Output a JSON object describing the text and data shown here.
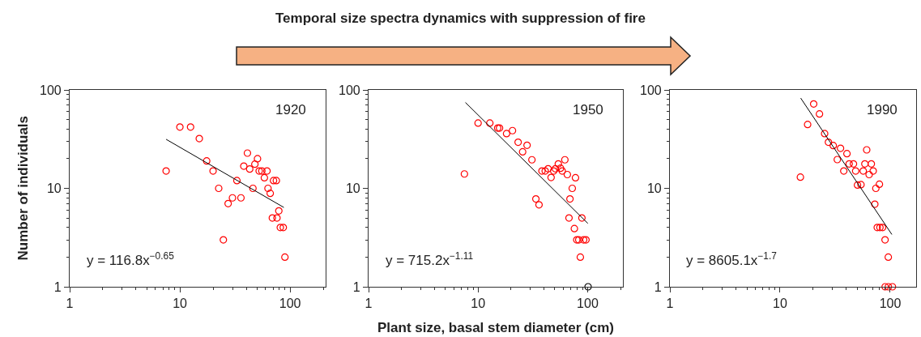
{
  "chart_data": [
    {
      "type": "scatter",
      "ylabel": "Number of individuals",
      "log": "xy",
      "xlim": [
        1,
        210
      ],
      "ylim": [
        1,
        100
      ],
      "xticks": [
        1,
        10,
        100
      ],
      "yticks": [
        1,
        10,
        100
      ],
      "marker": "circle",
      "annotations": [
        "1920",
        "y = 116.8x$^{−0.65}$"
      ],
      "series": [
        {
          "color": "#ff0000",
          "x": [
            7.5,
            10,
            12.5,
            15,
            17.5,
            20,
            22.5,
            27.4,
            30,
            32.9,
            35.8,
            24.8,
            38,
            41,
            43,
            46,
            47.9,
            50.6,
            52.4,
            55.4,
            58.4,
            61.7,
            63,
            66,
            70.7,
            75,
            79,
            69,
            76,
            81.5,
            86.7,
            89.7
          ],
          "values": [
            15,
            42,
            42,
            32,
            19,
            15,
            10,
            7,
            8,
            12,
            8,
            3,
            16.8,
            22.8,
            15.7,
            10,
            17.6,
            20,
            15,
            15,
            12.8,
            15,
            10,
            8.9,
            12,
            12,
            5.9,
            5,
            5,
            4,
            4,
            2
          ]
        },
        {
          "type": "line",
          "color": "#000000",
          "marker": "none",
          "x": [
            7.5,
            87.7
          ],
          "values": [
            31.5,
            6.4
          ]
        }
      ]
    },
    {
      "type": "scatter",
      "title": "Temporal size spectra dynamics with suppression of fire",
      "xlabel": "Plant size, basal stem diameter (cm)",
      "log": "xy",
      "xlim": [
        1,
        210
      ],
      "ylim": [
        1,
        100
      ],
      "xticks": [
        1,
        10,
        100
      ],
      "yticks": [
        1,
        10,
        100
      ],
      "marker": "circle",
      "annotations": [
        "1950",
        "y = 715.2x$^{−1.11}$"
      ],
      "series": [
        {
          "color": "#ff0000",
          "x": [
            7.5,
            10,
            12.8,
            15.1,
            15.7,
            18.2,
            20.6,
            23.2,
            25.5,
            28,
            31,
            33.7,
            36,
            38.3,
            41,
            43.6,
            46.4,
            49,
            50.8,
            54,
            56.6,
            58.6,
            62,
            65.3,
            67.6,
            69,
            72.4,
            75.7,
            77.5,
            79.6,
            83,
            85.8,
            88.7,
            92,
            96.6
          ],
          "values": [
            14,
            46,
            46,
            41,
            41,
            36,
            38.6,
            29.4,
            23.5,
            27.4,
            19.5,
            7.8,
            6.8,
            15,
            15,
            15.8,
            12.9,
            15,
            15.8,
            17.7,
            16,
            15,
            19.5,
            13.8,
            5,
            7.8,
            10,
            3.9,
            12.8,
            3,
            3,
            2,
            5,
            3,
            3
          ]
        },
        {
          "color": "#000000",
          "x": [
            101
          ],
          "values": [
            1
          ]
        },
        {
          "type": "line",
          "color": "#000000",
          "marker": "none",
          "x": [
            7.66,
            100.5
          ],
          "values": [
            74.6,
            4.4
          ]
        }
      ]
    },
    {
      "type": "scatter",
      "log": "xy",
      "xlim": [
        1,
        172
      ],
      "ylim": [
        1,
        100
      ],
      "xticks": [
        1,
        10,
        100
      ],
      "yticks": [
        1,
        10,
        100
      ],
      "marker": "circle",
      "annotations": [
        "1990",
        "y = 8605.1x$^{−1.7}$"
      ],
      "series": [
        {
          "color": "#ff0000",
          "x": [
            15.3,
            17.8,
            20.2,
            22.8,
            25.4,
            27.5,
            30.4,
            33.1,
            35.4,
            37.9,
            40.5,
            42.4,
            46.4,
            48.6,
            50.5,
            54.3,
            56.9,
            58.9,
            61.2,
            64.4,
            67.4,
            70.1,
            72.5,
            74.1,
            79.8,
            76.3,
            80.7,
            85.3,
            89.8,
            96.1,
            90,
            96.3,
            104.8
          ],
          "values": [
            13,
            44.5,
            72,
            57,
            36,
            29.4,
            27.2,
            19.6,
            25.5,
            15,
            22.5,
            17.7,
            17.7,
            15,
            10.8,
            10.9,
            15,
            17.7,
            24.6,
            13.8,
            17.7,
            15,
            6.9,
            10,
            11,
            4,
            4,
            4,
            3,
            2,
            1,
            1,
            1
          ]
        },
        {
          "type": "line",
          "color": "#000000",
          "marker": "none",
          "x": [
            15.4,
            103.5
          ],
          "values": [
            82.6,
            3.4
          ]
        }
      ]
    }
  ]
}
